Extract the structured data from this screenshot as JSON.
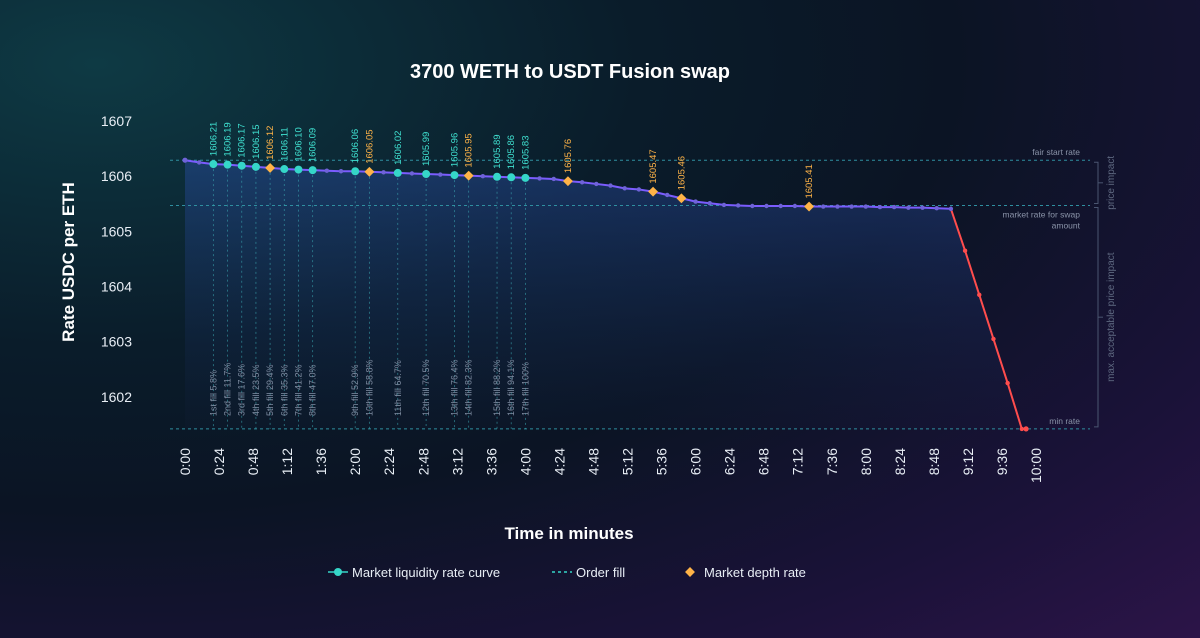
{
  "chart_data": {
    "type": "line",
    "title": "3700 WETH to USDT Fusion swap",
    "xlabel": "Time in minutes",
    "ylabel": "Rate USDC per ETH",
    "ylim": [
      1601.4,
      1607.2
    ],
    "xlim": [
      0,
      600
    ],
    "x_ticks": [
      {
        "v": 0,
        "label": "0:00"
      },
      {
        "v": 24,
        "label": "0:24"
      },
      {
        "v": 48,
        "label": "0:48"
      },
      {
        "v": 72,
        "label": "1:12"
      },
      {
        "v": 96,
        "label": "1:36"
      },
      {
        "v": 120,
        "label": "2:00"
      },
      {
        "v": 144,
        "label": "2:24"
      },
      {
        "v": 168,
        "label": "2:48"
      },
      {
        "v": 192,
        "label": "3:12"
      },
      {
        "v": 216,
        "label": "3:36"
      },
      {
        "v": 240,
        "label": "4:00"
      },
      {
        "v": 264,
        "label": "4:24"
      },
      {
        "v": 288,
        "label": "4:48"
      },
      {
        "v": 312,
        "label": "5:12"
      },
      {
        "v": 336,
        "label": "5:36"
      },
      {
        "v": 360,
        "label": "6:00"
      },
      {
        "v": 384,
        "label": "6:24"
      },
      {
        "v": 408,
        "label": "6:48"
      },
      {
        "v": 432,
        "label": "7:12"
      },
      {
        "v": 456,
        "label": "7:36"
      },
      {
        "v": 480,
        "label": "8:00"
      },
      {
        "v": 504,
        "label": "8:24"
      },
      {
        "v": 528,
        "label": "8:48"
      },
      {
        "v": 552,
        "label": "9:12"
      },
      {
        "v": 576,
        "label": "9:36"
      },
      {
        "v": 600,
        "label": "10:00"
      }
    ],
    "y_ticks": [
      {
        "v": 1602,
        "label": "1602"
      },
      {
        "v": 1603,
        "label": "1603"
      },
      {
        "v": 1604,
        "label": "1604"
      },
      {
        "v": 1605,
        "label": "1605"
      },
      {
        "v": 1606,
        "label": "1606"
      },
      {
        "v": 1607,
        "label": "1607"
      }
    ],
    "series": [
      {
        "name": "Market liquidity rate curve",
        "color": "#7b5cff",
        "marker_color": "#35d6c8",
        "x": [
          0,
          10,
          20,
          30,
          40,
          50,
          60,
          70,
          80,
          90,
          100,
          110,
          120,
          130,
          140,
          150,
          160,
          170,
          180,
          190,
          200,
          210,
          220,
          230,
          240,
          250,
          260,
          270,
          280,
          290,
          300,
          310,
          320,
          330,
          340,
          350,
          360,
          370,
          380,
          390,
          400,
          410,
          420,
          430,
          440,
          450,
          460,
          470,
          480,
          490,
          500,
          510,
          520,
          530,
          540,
          550,
          560,
          570,
          580,
          590,
          600
        ],
        "y": [
          1606.29,
          1606.25,
          1606.22,
          1606.21,
          1606.19,
          1606.17,
          1606.15,
          1606.13,
          1606.12,
          1606.11,
          1606.1,
          1606.09,
          1606.09,
          1606.08,
          1606.07,
          1606.06,
          1606.05,
          1606.04,
          1606.03,
          1606.02,
          1606.01,
          1606.0,
          1605.99,
          1605.98,
          1605.97,
          1605.96,
          1605.95,
          1605.91,
          1605.89,
          1605.86,
          1605.83,
          1605.78,
          1605.76,
          1605.72,
          1605.66,
          1605.6,
          1605.54,
          1605.51,
          1605.48,
          1605.47,
          1605.46,
          1605.46,
          1605.46,
          1605.46,
          1605.45,
          1605.45,
          1605.45,
          1605.45,
          1605.45,
          1605.44,
          1605.44,
          1605.43,
          1605.43,
          1605.42,
          1605.41,
          1604.65,
          1603.85,
          1603.05,
          1602.25,
          1601.42,
          1601.42
        ]
      }
    ],
    "min_rate_segment": {
      "color": "#ff4d4d",
      "x_start": 540,
      "x_end": 593
    },
    "order_fills": [
      {
        "label": "1st fill 5.8%",
        "x": 20,
        "value": "1606.21",
        "kind": "cyan"
      },
      {
        "label": "2nd fill 11.7%",
        "x": 30,
        "value": "1606.19",
        "kind": "cyan"
      },
      {
        "label": "3rd fill 17.6%",
        "x": 40,
        "value": "1606.17",
        "kind": "cyan"
      },
      {
        "label": "4th fill 23.5%",
        "x": 50,
        "value": "1606.15",
        "kind": "cyan"
      },
      {
        "label": "5th fill 29.4%",
        "x": 60,
        "value": "1606.12",
        "kind": "orange"
      },
      {
        "label": "6th fill 35.3%",
        "x": 70,
        "value": "1606.11",
        "kind": "cyan"
      },
      {
        "label": "7th fill 41.2%",
        "x": 80,
        "value": "1606.10",
        "kind": "cyan"
      },
      {
        "label": "8th fill 47.0%",
        "x": 90,
        "value": "1606.09",
        "kind": "cyan"
      },
      {
        "label": "9th fill 52.9%",
        "x": 120,
        "value": "1606.06",
        "kind": "cyan"
      },
      {
        "label": "10th fill 58.8%",
        "x": 130,
        "value": "1606.05",
        "kind": "orange"
      },
      {
        "label": "11th fill 64.7%",
        "x": 150,
        "value": "1606.02",
        "kind": "cyan"
      },
      {
        "label": "12th fill 70.5%",
        "x": 170,
        "value": "1605.99",
        "kind": "cyan"
      },
      {
        "label": "13th fill 76.4%",
        "x": 190,
        "value": "1605.96",
        "kind": "cyan"
      },
      {
        "label": "14th fill 82.3%",
        "x": 200,
        "value": "1605.95",
        "kind": "orange"
      },
      {
        "label": "15th fill 88.2%",
        "x": 220,
        "value": "1605.89",
        "kind": "cyan"
      },
      {
        "label": "16th fill 94.1%",
        "x": 230,
        "value": "1605.86",
        "kind": "cyan"
      },
      {
        "label": "17th fill 100%",
        "x": 240,
        "value": "1605.83",
        "kind": "cyan"
      }
    ],
    "depth_points": [
      {
        "x": 270,
        "value": "1605.76"
      },
      {
        "x": 330,
        "value": "1605.47"
      },
      {
        "x": 350,
        "value": "1605.46"
      },
      {
        "x": 440,
        "value": "1605.41"
      }
    ],
    "reference_lines": [
      {
        "label": "fair start rate",
        "y": 1606.29
      },
      {
        "label": "market rate for swap amount",
        "y": 1605.47
      },
      {
        "label": "min rate",
        "y": 1601.42
      }
    ],
    "brackets": [
      {
        "label": "price impact",
        "y_top": 1606.29,
        "y_bottom": 1605.47
      },
      {
        "label": "max. acceptable price impact",
        "y_top": 1605.47,
        "y_bottom": 1601.42
      }
    ],
    "legend": [
      {
        "label": "Market liquidity rate curve",
        "kind": "curve"
      },
      {
        "label": "Order fill",
        "kind": "dashed"
      },
      {
        "label": "Market depth rate",
        "kind": "diamond"
      }
    ],
    "legend_position": "bottom",
    "grid": false
  }
}
